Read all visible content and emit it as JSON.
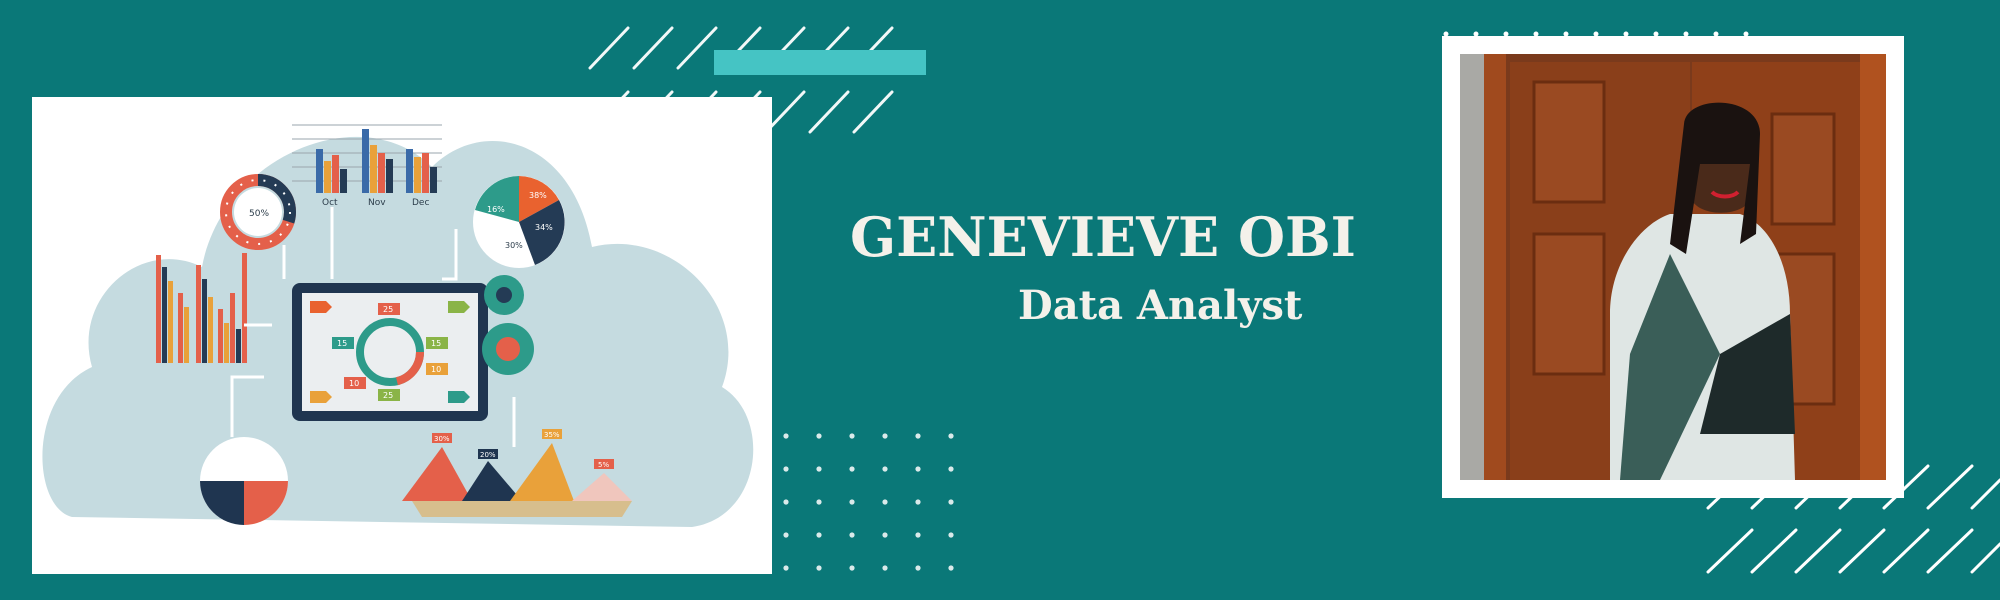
{
  "profile": {
    "name": "GENEVIEVE OBI",
    "role": "Data Analyst"
  },
  "colors": {
    "background": "#0a7878",
    "accent_bar": "#45c4c4",
    "text": "#f4f1ea",
    "cloud": "#c5dbe0",
    "frame": "#ffffff"
  },
  "infographic": {
    "bar_chart_labels": [
      "Oct",
      "Nov",
      "Dec"
    ],
    "bar_chart_axis": [
      "100",
      "80",
      "60",
      "40",
      "20"
    ],
    "donut_label": "50%",
    "pie_labels": [
      "38%",
      "16%",
      "34%",
      "30%"
    ],
    "tablet_numbers": [
      "25",
      "15",
      "15",
      "10",
      "10",
      "25"
    ],
    "mountain_labels": [
      "30%",
      "20%",
      "35%",
      "5%"
    ]
  }
}
